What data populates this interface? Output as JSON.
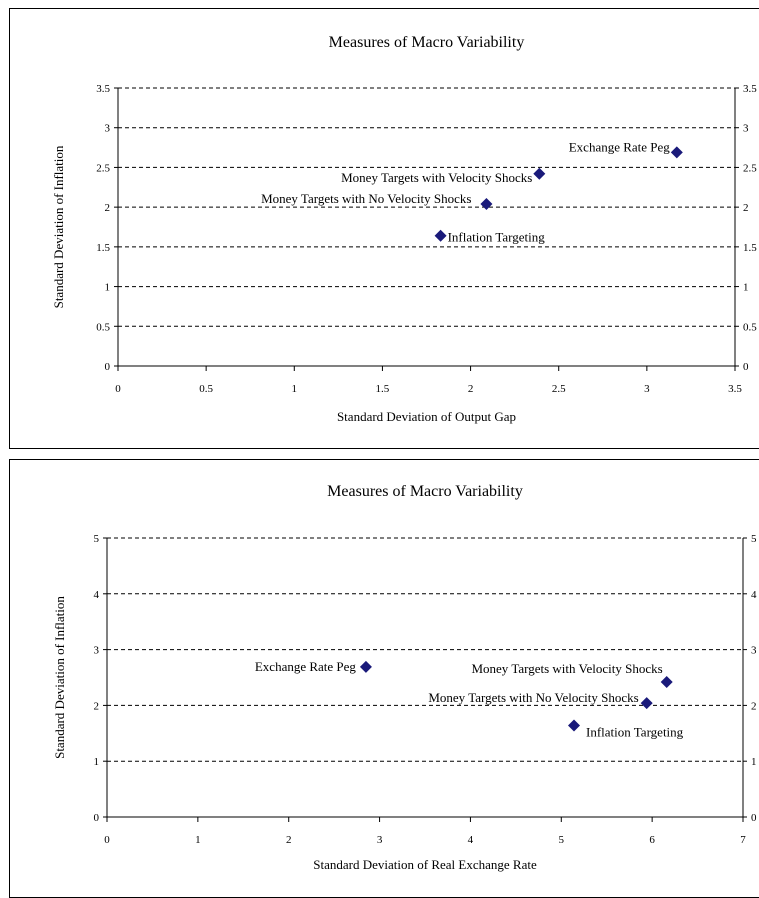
{
  "chart_data": [
    {
      "type": "scatter",
      "title": "Measures of Macro Variability",
      "xlabel": "Standard Deviation of Output Gap",
      "ylabel": "Standard Deviation of Inflation",
      "xlim": [
        0,
        3.5
      ],
      "ylim": [
        0,
        3.5
      ],
      "xticks": [
        "0",
        "0.5",
        "1",
        "1.5",
        "2",
        "2.5",
        "3",
        "3.5"
      ],
      "yticks": [
        "0",
        "0.5",
        "1",
        "1.5",
        "2",
        "2.5",
        "3",
        "3.5"
      ],
      "grid": "horizontal dashed",
      "marker_color": "#1a1a7a",
      "points": [
        {
          "label": "Exchange Rate Peg",
          "x": 3.17,
          "y": 2.69
        },
        {
          "label": "Money Targets with Velocity Shocks",
          "x": 2.39,
          "y": 2.42
        },
        {
          "label": "Money Targets with No Velocity Shocks",
          "x": 2.09,
          "y": 2.04
        },
        {
          "label": "Inflation Targeting",
          "x": 1.83,
          "y": 1.64
        }
      ]
    },
    {
      "type": "scatter",
      "title": "Measures of Macro Variability",
      "xlabel": "Standard Deviation of Real Exchange Rate",
      "ylabel": "Standard Deviation of Inflation",
      "xlim": [
        0,
        7
      ],
      "ylim": [
        0,
        5
      ],
      "xticks": [
        "0",
        "1",
        "2",
        "3",
        "4",
        "5",
        "6",
        "7"
      ],
      "yticks": [
        "0",
        "1",
        "2",
        "3",
        "4",
        "5"
      ],
      "grid": "horizontal dashed",
      "marker_color": "#1a1a7a",
      "points": [
        {
          "label": "Exchange Rate Peg",
          "x": 2.85,
          "y": 2.69
        },
        {
          "label": "Money Targets with Velocity Shocks",
          "x": 6.16,
          "y": 2.42
        },
        {
          "label": "Money Targets with No Velocity Shocks",
          "x": 5.94,
          "y": 2.04
        },
        {
          "label": "Inflation Targeting",
          "x": 5.14,
          "y": 1.64
        }
      ]
    }
  ]
}
